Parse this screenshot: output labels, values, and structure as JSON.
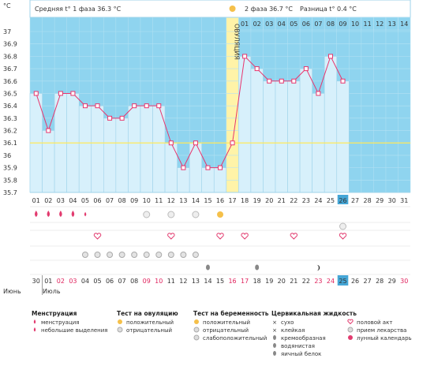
{
  "header": {
    "unit": "°C",
    "phase1_label": "Средняя t° 1 фаза",
    "phase1_value": "36.3 °C",
    "phase2_label": "2 фаза",
    "phase2_value": "36.7 °C",
    "diff_label": "Разница t°",
    "diff_value": "0.4 °C"
  },
  "ovulation_label": "ОВУЛЯЦИЯ",
  "chart_data": {
    "type": "line",
    "ylabel": "°C",
    "ylim": [
      35.7,
      37.0
    ],
    "yticks": [
      "37",
      "36.9",
      "36.8",
      "36.7",
      "36.6",
      "36.5",
      "36.4",
      "36.3",
      "36.2",
      "36.1",
      "36",
      "35.9",
      "35.8",
      "35.7"
    ],
    "cycle_days": [
      "01",
      "02",
      "03",
      "04",
      "05",
      "06",
      "07",
      "08",
      "09",
      "10",
      "11",
      "12",
      "13",
      "14",
      "15",
      "16",
      "17",
      "18",
      "19",
      "20",
      "21",
      "22",
      "23",
      "24",
      "25",
      "26",
      "27",
      "28",
      "29",
      "30",
      "31"
    ],
    "series": [
      {
        "values": [
          36.5,
          36.2,
          36.5,
          36.5,
          36.4,
          36.4,
          36.3,
          36.3,
          36.4,
          36.4,
          36.4,
          36.1,
          35.9,
          36.1,
          35.9,
          35.9,
          36.1,
          36.8,
          36.7,
          36.6,
          36.6,
          36.6,
          36.7,
          36.5,
          36.8,
          36.6
        ]
      }
    ],
    "coverline": 36.1,
    "ovulation_day": 17,
    "phase2_day_labels": [
      "01",
      "02",
      "03",
      "04",
      "05",
      "06",
      "07",
      "08",
      "09",
      "10",
      "11",
      "12",
      "13",
      "14"
    ],
    "current_day": "26"
  },
  "calendar": {
    "month_prev": "Июнь",
    "month_next": "Июль",
    "dates": [
      "30",
      "01",
      "02",
      "03",
      "04",
      "05",
      "06",
      "07",
      "08",
      "09",
      "10",
      "11",
      "12",
      "13",
      "14",
      "15",
      "16",
      "17",
      "18",
      "19",
      "20",
      "21",
      "22",
      "23",
      "24",
      "25",
      "26",
      "27",
      "28",
      "29",
      "30"
    ],
    "weekend_indices": [
      2,
      3,
      9,
      10,
      16,
      17,
      23,
      24,
      30
    ],
    "current_index": 25
  },
  "rows": {
    "menstruation": [
      "full",
      "full",
      "full",
      "full",
      "light"
    ],
    "ovulation_test_negative_days": [
      10,
      12,
      14
    ],
    "ovulation_test_positive_day": 16,
    "pregnancy_test_day": 26,
    "sex_days": [
      6,
      12,
      16,
      18,
      22,
      26
    ],
    "medication_days": [
      5,
      6,
      7,
      8,
      9,
      10,
      11,
      12,
      13,
      14
    ],
    "fluid_egg_white_days": [
      15,
      19
    ],
    "fluid_creamy_day": 24
  },
  "legend": {
    "menstruation": {
      "title": "Менструация",
      "items": [
        "менструация",
        "небольшие выделения"
      ]
    },
    "ovulation_test": {
      "title": "Тест на овуляцию",
      "items": [
        "положительный",
        "отрицательный"
      ]
    },
    "pregnancy_test": {
      "title": "Тест на беременность",
      "items": [
        "положительный",
        "отрицательный",
        "слабоположительный"
      ]
    },
    "cervical_fluid": {
      "title": "Цервикальная жидкость",
      "items": [
        "сухо",
        "клейкая",
        "кремообразная",
        "водянистая",
        "яичный белок"
      ]
    },
    "other": {
      "items": [
        "половой акт",
        "прием лекарства",
        "лунный календарь"
      ]
    }
  },
  "colors": {
    "phase2_bg": "#8fd4ef",
    "bar_fill": "#d7f0fb",
    "line": "#e8356d",
    "ovulation_band": "#fff3a8",
    "coverline": "#ffe95a",
    "accent_current": "#45a6d6"
  }
}
